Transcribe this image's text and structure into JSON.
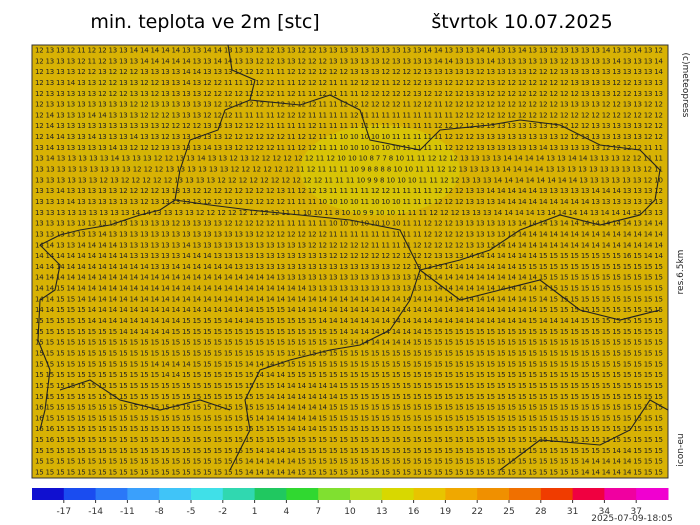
{
  "header": {
    "title": "min. teplota ve 2m [stc]",
    "date": "štvrtok 10.07.2025"
  },
  "side_labels": [
    "(c)meteopress",
    "res.6.5km",
    "icon-eu"
  ],
  "footer": "2025-07-09-18:05",
  "grid": {
    "rows": [
      "12 13 13 12 11 12 12 13 13 14 14 14 14 14 13 13 14 14 13 13 13 12 12 13 13 12 12 13 13 13 13 13 13 13 13 13 13 14 14 13 13 13 14 14 13 13 14 13 13 12 13 13 13 13 14 13 13 14 13 12",
      "12 13 13 13 12 11 12 13 13 13 14 14 14 14 14 13 13 14 14 13 13 12 12 13 13 12 12 12 13 13 13 13 13 12 13 13 13 13 14 14 13 13 13 14 13 13 13 13 13 13 12 13 13 13 13 14 13 13 13 14",
      "12 13 13 13 12 12 13 12 12 12 13 13 13 13 14 14 13 13 13 12 12 12 11 11 12 12 12 12 12 12 13 13 13 12 12 12 12 13 13 13 13 13 12 13 13 13 13 12 12 12 13 13 13 13 13 13 13 13 13 14",
      "12 13 13 14 13 13 12 12 13 13 12 12 13 13 14 13 12 12 11 11 11 12 12 11 11 12 12 12 11 11 12 12 12 11 12 12 12 13 13 12 12 12 12 13 12 12 12 12 12 12 12 13 13 13 13 12 12 13 13 13",
      "12 13 13 13 13 13 12 12 12 13 13 12 13 13 13 13 12 12 12 12 12 12 12 11 12 11 11 12 11 11 11 12 12 12 12 12 13 12 12 12 12 13 13 12 12 12 12 12 12 12 12 12 13 13 13 12 12 13 13 13",
      "12 13 13 13 13 13 13 13 13 12 12 13 13 13 13 13 13 12 12 12 12 12 11 12 12 12 12 11 11 12 12 12 12 12 12 11 12 12 11 12 12 12 12 12 12 12 12 12 12 12 13 13 13 13 12 12 13 13 12 12",
      "12 14 13 13 13 14 14 13 13 13 12 12 12 13 13 13 12 12 12 11 11 11 11 12 12 12 11 11 11 11 12 11 11 11 11 11 11 11 11 11 12 12 12 12 12 12 12 12 12 12 12 12 12 12 12 12 12 12 12 12",
      "12 14 13 13 13 13 13 13 13 13 13 13 12 12 12 12 13 13 13 12 12 12 11 11 11 11 12 11 11 11 11 11 11 11 11 11 11 11 12 12 12 12 13 13 13 13 13 13 13 13 12 12 12 13 13 13 13 13 12 12",
      "12 14 14 13 13 14 13 13 13 14 13 13 12 13 13 13 13 13 12 12 12 12 12 12 11 12 12 11 11 10 10 10 10 10 11 11 11 11 11 12 12 12 13 13 13 13 13 13 13 13 12 12 13 13 13 13 13 13 12 12",
      "13 14 13 13 13 13 13 14 13 12 12 12 13 13 13 13 14 13 13 12 12 12 12 11 11 12 12 11 11 10 10 10 10 10 10 11 11 11 11 12 12 12 13 13 13 13 13 13 14 13 13 13 13 13 12 12 12 12 11 11",
      "13 14 13 13 13 13 13 14 13 13 13 12 12 13 13 14 13 13 12 13 12 12 12 12 12 12 11 12 10 10 10 8 7 7 8 10 11 11 12 12 12 13 13 13 13 14 14 14 14 13 13 14 14 13 13 13 12 12 11 11",
      "13 13 13 13 13 13 13 13 13 12 12 12 13 13 13 13 13 13 12 12 12 12 12 12 11 12 11 11 11 10 9 8 8 8 8 10 10 11 11 12 12 13 13 13 13 14 14 14 14 13 13 13 13 13 13 13 13 13 12 11",
      "13 13 13 13 13 13 12 13 12 12 12 12 12 13 13 13 13 12 12 12 12 12 12 12 12 12 12 11 11 11 10 9 9 8 10 10 10 11 11 12 12 13 13 13 14 14 14 14 14 14 14 14 13 13 13 13 13 13 12 10",
      "13 13 14 13 13 13 13 13 12 12 12 12 13 13 13 12 12 12 12 12 12 12 12 13 11 12 12 13 11 11 11 11 12 12 11 11 11 11 12 12 12 13 13 14 14 14 14 14 13 13 13 13 13 14 14 14 13 13 13 12",
      "13 13 13 14 13 13 13 13 13 13 12 13 13 13 13 13 12 12 12 12 12 12 12 12 11 11 11 10 10 10 10 11 10 10 10 11 11 11 12 12 12 13 13 13 14 14 14 14 14 14 14 14 14 13 13 13 13 13 13 13",
      "13 13 13 13 13 13 13 13 13 14 14 13 13 13 13 12 12 12 12 12 12 12 12 11 11 10 10 11 8 10 10 9 9 10 10 11 11 11 12 12 12 13 13 13 14 14 14 14 13 14 14 14 14 13 14 14 14 13 13 13",
      "13 13 13 13 13 13 13 13 13 13 13 13 13 12 13 13 13 13 12 12 12 12 12 11 11 11 11 11 10 10 10 10 10 10 10 11 11 12 12 12 13 13 13 13 13 13 14 14 14 13 14 14 14 14 14 14 14 13 14 14",
      "13 13 13 13 13 13 14 13 13 13 13 13 13 13 13 13 13 13 13 13 13 12 12 12 12 12 12 12 11 11 11 11 11 11 11 11 11 12 12 12 12 13 13 13 13 13 14 14 14 14 14 14 14 14 14 14 14 14 14 14",
      "14 14 13 13 14 14 14 14 13 13 13 13 13 13 14 13 13 13 13 13 13 13 13 13 13 13 12 12 12 12 12 12 11 11 11 11 12 12 12 12 12 13 13 13 14 14 14 14 14 14 14 14 14 14 14 14 14 14 14 14",
      "14 14 14 14 14 14 14 14 14 13 13 13 13 13 14 14 14 13 13 13 13 13 13 13 13 13 13 13 12 12 12 12 12 12 12 12 12 12 13 13 13 14 14 14 14 14 14 14 15 15 15 15 15 15 15 15 16 15 14 14",
      "14 14 14 14 14 14 14 14 14 14 14 13 13 14 14 14 14 14 14 13 13 13 13 13 13 13 13 13 13 13 13 13 13 13 12 12 13 13 13 14 14 14 14 14 14 14 15 15 15 15 15 15 15 15 15 15 15 15 15 15",
      "14 14 14 14 14 14 14 14 14 14 14 14 14 14 14 14 14 14 14 14 14 14 14 13 13 13 13 13 13 13 13 13 13 13 13 13 13 13 14 14 14 14 14 14 14 14 14 14 15 15 15 15 15 15 15 15 15 15 15 15",
      "14 14 15 14 14 14 14 14 14 14 14 14 14 14 14 14 14 14 14 14 14 14 14 14 14 14 13 13 13 13 13 13 13 13 13 13 13 13 14 14 14 14 14 14 14 14 14 14 14 15 15 15 15 15 15 15 15 15 15 15",
      "14 14 15 15 14 14 14 14 14 14 14 14 14 14 14 14 14 14 14 14 14 14 14 14 14 14 14 14 14 14 14 14 14 14 14 14 14 14 14 14 14 14 14 14 14 14 14 15 14 15 15 15 15 15 15 15 15 15 15 15",
      "14 14 15 15 15 14 14 14 14 14 14 14 14 14 14 14 14 14 14 14 14 15 15 15 14 14 14 14 14 14 14 14 14 14 14 14 14 14 14 14 14 14 14 14 14 14 14 14 15 15 15 15 15 15 15 15 15 15 15 15",
      "15 15 15 15 15 14 14 14 14 14 14 14 14 14 15 15 15 15 14 14 14 15 15 15 15 15 15 14 14 14 14 14 14 14 14 14 14 14 14 14 14 14 14 14 14 14 14 15 14 14 14 14 15 15 15 15 15 15 15 15",
      "15 15 15 15 15 15 15 15 14 14 14 14 14 15 15 15 15 15 15 15 15 15 15 15 15 15 15 15 15 14 14 14 14 14 14 14 14 15 15 15 15 15 15 15 15 15 15 15 15 15 15 15 15 15 15 15 15 15 15 15",
      "15 15 15 15 15 15 15 15 15 15 15 15 15 15 15 15 15 15 15 15 15 15 15 15 15 15 15 15 15 15 14 14 14 14 14 14 15 15 15 15 15 15 15 15 15 15 15 15 15 15 15 15 15 15 15 15 15 15 15 15",
      "15 15 15 15 15 15 15 15 15 15 15 15 15 15 15 15 15 15 15 15 15 15 15 15 15 15 15 15 15 15 15 15 15 15 15 15 15 15 15 15 15 15 15 15 15 15 15 15 15 15 15 15 15 15 15 15 15 15 15 15",
      "15 15 15 15 15 15 15 15 15 15 15 14 14 14 14 15 15 15 15 15 14 14 14 15 15 15 15 15 15 15 15 15 15 15 15 15 15 15 15 15 15 15 15 15 15 15 15 15 15 15 15 15 15 15 15 15 15 15 15 15",
      "15 15 15 15 15 15 15 15 15 15 15 15 14 14 15 15 15 15 15 15 15 14 14 14 15 15 15 15 15 15 15 15 15 15 15 15 15 15 15 15 15 15 15 15 15 15 15 15 15 15 15 15 15 15 15 15 15 15 15 15",
      "15 15 15 15 15 15 15 15 15 15 15 15 15 15 15 15 15 15 15 15 15 15 15 14 14 14 14 14 14 15 15 15 15 15 15 15 15 15 15 15 15 15 15 15 15 15 15 15 15 15 15 15 15 15 15 15 15 15 15 15",
      "15 15 15 15 15 15 15 15 15 15 15 15 15 15 15 15 15 15 15 15 15 15 14 14 14 14 14 14 14 15 15 15 15 15 15 15 15 15 15 15 15 15 15 15 15 15 15 15 15 15 15 15 15 15 15 15 15 15 15 15",
      "16 15 15 15 15 15 15 15 15 15 15 15 15 15 15 15 15 15 15 15 15 15 15 14 14 14 14 14 15 15 15 15 15 15 15 15 15 15 15 15 15 15 15 15 15 15 15 15 15 15 15 15 15 15 15 15 15 15 15 15",
      "16 15 15 15 15 15 15 15 15 15 15 15 15 15 15 15 15 15 15 15 15 14 14 14 14 14 14 15 15 15 15 15 15 15 15 15 15 15 15 15 15 15 15 15 15 15 15 15 15 15 15 15 15 15 15 15 15 15 15 15",
      "16 16 15 15 15 15 15 15 15 15 15 15 15 15 15 15 15 15 15 15 15 15 15 15 14 14 14 15 15 15 15 15 15 15 15 15 15 15 15 15 15 15 15 15 15 15 15 15 15 15 15 15 15 15 15 15 15 15 15 15",
      "15 16 15 15 15 15 15 15 15 15 15 15 15 15 15 15 15 15 15 15 15 15 15 15 15 15 15 15 15 15 15 15 15 15 15 15 15 15 15 15 15 15 15 15 15 15 15 15 15 15 15 15 15 15 15 15 15 15 15 15",
      "15 15 15 15 15 15 15 15 15 15 15 15 15 15 15 15 15 15 15 15 15 14 14 14 14 15 15 15 15 15 15 15 15 15 15 15 15 15 15 15 15 15 15 15 15 15 15 15 15 15 15 15 15 15 15 14 14 15 15 15",
      "15 15 15 15 15 15 15 15 15 15 15 15 15 15 15 15 15 15 15 15 14 14 14 14 14 15 15 15 15 15 15 15 15 15 15 15 15 15 15 15 15 15 15 15 15 15 15 15 15 15 15 15 14 14 14 14 14 15 15 15",
      "15 15 15 15 15 15 15 15 15 15 15 15 15 15 15 15 15 15 15 15 14 14 14 14 14 15 15 15 15 15 15 15 15 15 15 15 15 15 15 15 15 15 15 15 15 15 15 15 15 15 15 15 14 14 14 14 14 15 15 15"
    ]
  },
  "colorbar": {
    "range": [
      -20,
      40
    ],
    "ticks": [
      -17,
      -14,
      -11,
      -8,
      -5,
      -2,
      1,
      4,
      7,
      10,
      13,
      16,
      19,
      22,
      25,
      28,
      31,
      34,
      37
    ],
    "colors": [
      "#1010d0",
      "#1a4cf0",
      "#2a78f8",
      "#3aa0fc",
      "#40c4f8",
      "#40e0e8",
      "#30d8b0",
      "#20c860",
      "#30d830",
      "#80e030",
      "#b8e020",
      "#d8d800",
      "#e8c400",
      "#f0a800",
      "#f09000",
      "#f07000",
      "#f03c00",
      "#f00040",
      "#f000a0",
      "#f000d0"
    ]
  }
}
